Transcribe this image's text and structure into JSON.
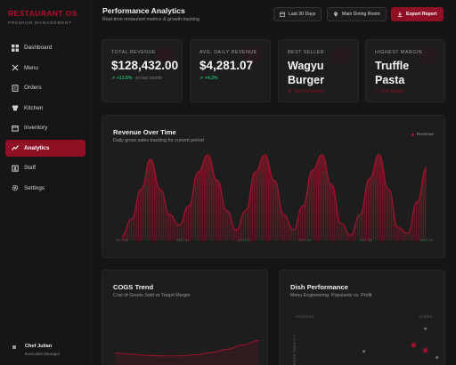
{
  "brand": {
    "name": "RESTAURANT OS",
    "tagline": "PREMIUM MANAGEMENT"
  },
  "nav": [
    {
      "label": "Dashboard",
      "icon": "dashboard-icon",
      "active": false
    },
    {
      "label": "Menu",
      "icon": "utensils-icon",
      "active": false
    },
    {
      "label": "Orders",
      "icon": "clipboard-icon",
      "active": false
    },
    {
      "label": "Kitchen",
      "icon": "chef-hat-icon",
      "active": false
    },
    {
      "label": "Inventory",
      "icon": "box-icon",
      "active": false
    },
    {
      "label": "Analytics",
      "icon": "chart-icon",
      "active": true
    },
    {
      "label": "Staff",
      "icon": "badge-icon",
      "active": false
    },
    {
      "label": "Settings",
      "icon": "gear-icon",
      "active": false
    }
  ],
  "user": {
    "name": "Chef Julian",
    "role": "Executive Manager"
  },
  "header": {
    "title": "Performance Analytics",
    "subtitle": "Real-time restaurant metrics & growth tracking",
    "date_range": "Last 30 Days",
    "location": "Main Dining Room",
    "export_label": "Export Report"
  },
  "kpis": [
    {
      "label": "TOTAL REVENUE",
      "value": "$128,432.00",
      "delta": "+12.5%",
      "delta_note": "vs last month"
    },
    {
      "label": "AVG. DAILY REVENUE",
      "value": "$4,281.07",
      "delta": "+4.2%",
      "delta_note": ""
    },
    {
      "label": "BEST SELLER",
      "value_line1": "Wagyu",
      "value_line2": "Burger",
      "note": "Top Performing"
    },
    {
      "label": "HIGHEST MARGIN",
      "value_line1": "Truffle",
      "value_line2": "Pasta",
      "note": "72% Margin"
    }
  ],
  "revenue_chart": {
    "title": "Revenue Over Time",
    "subtitle": "Daily gross sales tracking for current period",
    "legend": "Revenue"
  },
  "cogs_chart": {
    "title": "COGS Trend",
    "subtitle": "Cost of Goods Sold vs Target Margin"
  },
  "dish_chart": {
    "title": "Dish Performance",
    "subtitle": "Menu Engineering: Popularity vs. Profit",
    "quadrant_left": "PUZZLES",
    "quadrant_right": "STARS",
    "y_axis_label": "PROFITABILITY"
  },
  "chart_data": [
    {
      "type": "area",
      "title": "Revenue Over Time",
      "x_ticks": [
        "OCT 01",
        "OCT 07",
        "OCT 14",
        "OCT 21",
        "OCT 28",
        "NOV 01"
      ],
      "series": [
        {
          "name": "Revenue",
          "values": [
            0.05,
            0.25,
            0.6,
            0.95,
            0.6,
            0.3,
            0.18,
            0.4,
            0.8,
            1.0,
            0.7,
            0.35,
            0.12,
            0.35,
            0.8,
            1.0,
            0.7,
            0.3,
            0.12,
            0.4,
            0.82,
            1.0,
            0.65,
            0.2,
            0.06,
            0.3,
            0.72,
            1.0,
            0.6,
            0.15,
            0.08,
            0.45,
            0.85
          ]
        }
      ],
      "color": "#b0122d"
    },
    {
      "type": "line",
      "title": "COGS Trend",
      "series": [
        {
          "name": "COGS",
          "values": [
            0.15,
            0.13,
            0.11,
            0.1,
            0.1,
            0.12,
            0.16,
            0.22,
            0.3,
            0.38
          ]
        }
      ],
      "color": "#b0122d"
    },
    {
      "type": "scatter",
      "title": "Dish Performance",
      "ylabel": "PROFITABILITY",
      "points": [
        {
          "x": 0.48,
          "y": 0.3,
          "color": "#777777"
        },
        {
          "x": 0.82,
          "y": 0.42,
          "color": "#b0122d"
        },
        {
          "x": 0.9,
          "y": 0.32,
          "color": "#b0122d"
        },
        {
          "x": 0.9,
          "y": 0.74,
          "color": "#777777"
        },
        {
          "x": 0.98,
          "y": 0.18,
          "color": "#777777"
        }
      ]
    }
  ]
}
